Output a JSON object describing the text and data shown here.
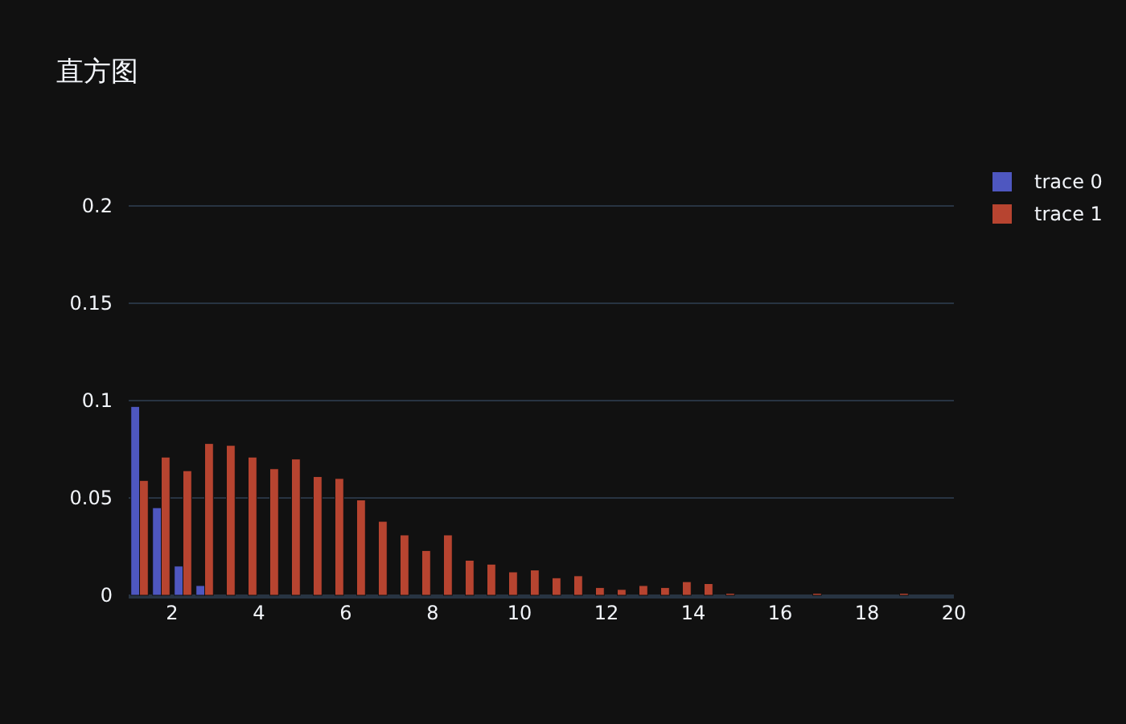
{
  "chart_data": {
    "type": "histogram",
    "title": "直方图",
    "bins": [
      1,
      1.5,
      2,
      2.5,
      3,
      3.5,
      4,
      4.5,
      5,
      5.5,
      6,
      6.5,
      7,
      7.5,
      8,
      8.5,
      9,
      9.5,
      10,
      10.5,
      11,
      11.5,
      12,
      12.5,
      13,
      13.5,
      14,
      14.5,
      15,
      15.5,
      16,
      16.5,
      17,
      17.5,
      18,
      18.5,
      19,
      19.5,
      20
    ],
    "series": [
      {
        "name": "trace 0",
        "color": "#4e57c0",
        "values": [
          0.097,
          0.045,
          0.015,
          0.005,
          0,
          0,
          0,
          0,
          0,
          0,
          0,
          0,
          0,
          0,
          0,
          0,
          0,
          0,
          0,
          0,
          0,
          0,
          0,
          0,
          0,
          0,
          0,
          0,
          0,
          0,
          0,
          0,
          0,
          0,
          0,
          0,
          0,
          0
        ]
      },
      {
        "name": "trace 1",
        "color": "#b74430",
        "values": [
          0.059,
          0.071,
          0.064,
          0.078,
          0.077,
          0.071,
          0.065,
          0.07,
          0.061,
          0.06,
          0.049,
          0.038,
          0.031,
          0.023,
          0.031,
          0.018,
          0.016,
          0.012,
          0.013,
          0.009,
          0.01,
          0.004,
          0.003,
          0.005,
          0.004,
          0.007,
          0.006,
          0.001,
          0,
          0,
          0,
          0.001,
          0,
          0,
          0,
          0.001,
          0,
          0
        ]
      }
    ],
    "xlim": [
      1,
      20
    ],
    "ylim": [
      0,
      0.2
    ],
    "xticks": [
      2,
      4,
      6,
      8,
      10,
      12,
      14,
      16,
      18,
      20
    ],
    "yticks": [
      0,
      0.05,
      0.1,
      0.15,
      0.2
    ],
    "grid": "y",
    "legend": "top right"
  }
}
